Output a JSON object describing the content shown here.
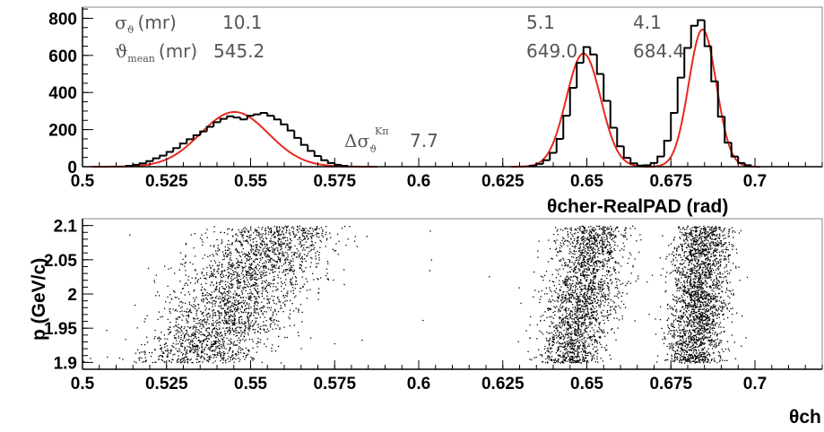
{
  "chart_data": [
    {
      "type": "histogram",
      "xlabel": "θcher-RealPAD (rad)",
      "ylabel": "",
      "xlim": [
        0.5,
        0.72
      ],
      "ylim": [
        0,
        860
      ],
      "x_ticks": [
        "0.5",
        "0.525",
        "0.55",
        "0.575",
        "0.6",
        "0.625",
        "0.65",
        "0.675",
        "0.7"
      ],
      "y_ticks": [
        "0",
        "200",
        "400",
        "600",
        "800"
      ],
      "grid": false,
      "series": [
        {
          "kind": "histogram",
          "color": "#000000",
          "bin_width": 0.002,
          "bins": [
            [
              0.514,
              5
            ],
            [
              0.516,
              10
            ],
            [
              0.518,
              18
            ],
            [
              0.52,
              30
            ],
            [
              0.522,
              45
            ],
            [
              0.524,
              60
            ],
            [
              0.526,
              80
            ],
            [
              0.528,
              100
            ],
            [
              0.53,
              125
            ],
            [
              0.532,
              148
            ],
            [
              0.534,
              170
            ],
            [
              0.536,
              190
            ],
            [
              0.538,
              215
            ],
            [
              0.54,
              240
            ],
            [
              0.542,
              258
            ],
            [
              0.544,
              272
            ],
            [
              0.546,
              265
            ],
            [
              0.548,
              255
            ],
            [
              0.55,
              275
            ],
            [
              0.552,
              282
            ],
            [
              0.554,
              290
            ],
            [
              0.556,
              275
            ],
            [
              0.558,
              255
            ],
            [
              0.56,
              228
            ],
            [
              0.562,
              195
            ],
            [
              0.564,
              155
            ],
            [
              0.566,
              118
            ],
            [
              0.568,
              85
            ],
            [
              0.57,
              58
            ],
            [
              0.572,
              35
            ],
            [
              0.574,
              20
            ],
            [
              0.576,
              10
            ],
            [
              0.578,
              5
            ],
            [
              0.634,
              5
            ],
            [
              0.636,
              15
            ],
            [
              0.638,
              35
            ],
            [
              0.64,
              75
            ],
            [
              0.642,
              150
            ],
            [
              0.644,
              275
            ],
            [
              0.646,
              425
            ],
            [
              0.648,
              560
            ],
            [
              0.65,
              645
            ],
            [
              0.652,
              605
            ],
            [
              0.654,
              500
            ],
            [
              0.656,
              355
            ],
            [
              0.658,
              210
            ],
            [
              0.66,
              110
            ],
            [
              0.662,
              48
            ],
            [
              0.664,
              18
            ],
            [
              0.666,
              6
            ],
            [
              0.668,
              8
            ],
            [
              0.67,
              20
            ],
            [
              0.672,
              55
            ],
            [
              0.674,
              140
            ],
            [
              0.676,
              290
            ],
            [
              0.678,
              480
            ],
            [
              0.68,
              640
            ],
            [
              0.682,
              760
            ],
            [
              0.684,
              790
            ],
            [
              0.686,
              650
            ],
            [
              0.688,
              460
            ],
            [
              0.69,
              270
            ],
            [
              0.692,
              130
            ],
            [
              0.694,
              55
            ],
            [
              0.696,
              20
            ],
            [
              0.698,
              8
            ]
          ]
        },
        {
          "kind": "gaussian-fit",
          "color": "#e8281e",
          "peaks": [
            {
              "mean": 0.5452,
              "sigma": 0.0101,
              "amplitude": 295
            },
            {
              "mean": 0.649,
              "sigma": 0.0051,
              "amplitude": 610
            },
            {
              "mean": 0.6844,
              "sigma": 0.0041,
              "amplitude": 740
            }
          ]
        }
      ],
      "stats": {
        "sigma_label": "σ",
        "sigma_sub": "ϑ",
        "sigma_unit": "(mr)",
        "mean_label": "ϑ",
        "mean_sub": "mean",
        "mean_unit": "(mr)",
        "sigma_values": [
          "10.1",
          "5.1",
          "4.1"
        ],
        "mean_values": [
          "545.2",
          "649.0",
          "684.4"
        ],
        "separation_label": "Δσ",
        "separation_sub": "ϑ",
        "separation_sup": "Kπ",
        "separation_value": "7.7"
      }
    },
    {
      "type": "scatter",
      "xlabel": "θch",
      "ylabel": "p (GeV/c)",
      "xlim": [
        0.5,
        0.72
      ],
      "ylim": [
        1.89,
        2.11
      ],
      "x_ticks": [
        "0.5",
        "0.525",
        "0.55",
        "0.575",
        "0.6",
        "0.625",
        "0.65",
        "0.675",
        "0.7"
      ],
      "y_ticks": [
        "1.9",
        "1.95",
        "2",
        "2.05",
        "2.1"
      ],
      "grid": false,
      "point_color": "#000000",
      "bands": [
        {
          "x_at_1.90": 0.533,
          "x_at_2.10": 0.559,
          "spread": 0.0095,
          "points": 2600
        },
        {
          "x_at_1.90": 0.6445,
          "x_at_2.10": 0.6525,
          "spread": 0.0052,
          "points": 2100
        },
        {
          "x_at_1.90": 0.6815,
          "x_at_2.10": 0.6848,
          "spread": 0.0042,
          "points": 2300
        }
      ],
      "background_points": 40
    }
  ]
}
